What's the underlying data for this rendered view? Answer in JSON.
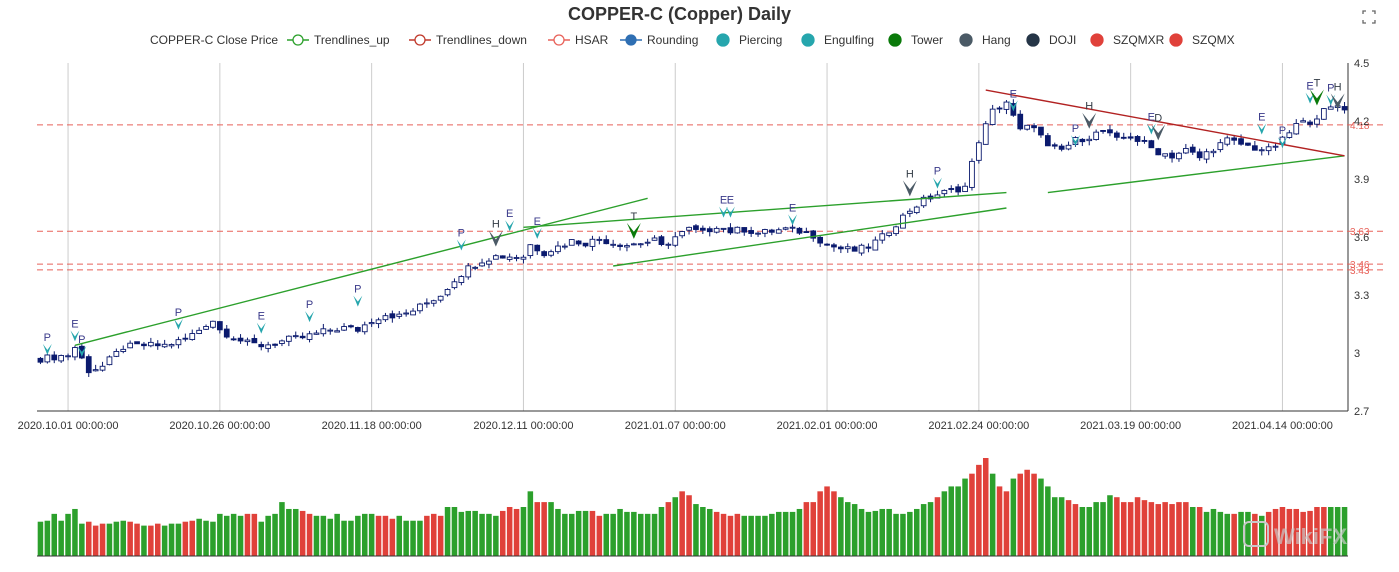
{
  "header": {
    "title": "COPPER-C (Copper) Daily",
    "save_icon": "save-as-image-icon"
  },
  "legend": [
    {
      "label": "COPPER-C Close Price",
      "kind": "none",
      "color": "#333333"
    },
    {
      "label": "Trendlines_up",
      "kind": "line-circle",
      "color": "#2ca02c"
    },
    {
      "label": "Trendlines_down",
      "kind": "line-circle",
      "color": "#c0392b"
    },
    {
      "label": "HSAR",
      "kind": "line-circle",
      "color": "#e8625a"
    },
    {
      "label": "Rounding",
      "kind": "line-dot",
      "color": "#2f6fb3"
    },
    {
      "label": "Piercing",
      "kind": "dot",
      "color": "#26a6ad"
    },
    {
      "label": "Engulfing",
      "kind": "dot",
      "color": "#26a6ad"
    },
    {
      "label": "Tower",
      "kind": "dot",
      "color": "#0a7a0a"
    },
    {
      "label": "Hang",
      "kind": "dot",
      "color": "#4b5a66"
    },
    {
      "label": "DOJI",
      "kind": "dot",
      "color": "#253547"
    },
    {
      "label": "SZQMXR",
      "kind": "dot",
      "color": "#e0413a"
    },
    {
      "label": "SZQMX",
      "kind": "dot",
      "color": "#e0413a"
    }
  ],
  "colors": {
    "candle_up": "#0b1a6e",
    "candle_down": "#0b1a6e",
    "trend_up": "#2ca02c",
    "trend_down": "#b22222",
    "hsar": "#e8625a",
    "grid": "#cccccc",
    "vol_up": "#2ca02c",
    "vol_down": "#e0413a",
    "piercing": "#26a6ad",
    "engulfing": "#26a6ad",
    "tower": "#0a7a0a",
    "hang": "#4b5a66",
    "doji": "#4b5a66",
    "watermark": "#c8c8c8"
  },
  "chart_data": {
    "type": "candlestick",
    "title": "COPPER-C (Copper) Daily",
    "y_axis": {
      "min": 2.7,
      "max": 4.5,
      "ticks": [
        2.7,
        3,
        3.3,
        3.6,
        3.9,
        4.2,
        4.5
      ],
      "tick_labels": [
        "2.7",
        "3",
        "3.3",
        "3.6",
        "3.9",
        "4.2",
        "4.5"
      ],
      "position": "right"
    },
    "x_axis": {
      "tick_labels": [
        "2020.10.01 00:00:00",
        "2020.10.26 00:00:00",
        "2020.11.18 00:00:00",
        "2020.12.11 00:00:00",
        "2021.01.07 00:00:00",
        "2021.02.01 00:00:00",
        "2021.02.24 00:00:00",
        "2021.03.19 00:00:00",
        "2021.04.14 00:00:00"
      ],
      "tick_index": [
        4,
        26,
        48,
        70,
        92,
        114,
        136,
        158,
        180
      ]
    },
    "grid": true,
    "candles_count": 190,
    "close_path": [
      [
        0,
        2.97
      ],
      [
        4,
        2.99
      ],
      [
        5,
        3.03
      ],
      [
        7,
        2.91
      ],
      [
        9,
        2.93
      ],
      [
        12,
        3.03
      ],
      [
        15,
        3.04
      ],
      [
        18,
        3.04
      ],
      [
        21,
        3.07
      ],
      [
        23,
        3.12
      ],
      [
        24,
        3.15
      ],
      [
        25,
        3.17
      ],
      [
        26,
        3.12
      ],
      [
        28,
        3.08
      ],
      [
        30,
        3.05
      ],
      [
        32,
        3.04
      ],
      [
        34,
        3.05
      ],
      [
        36,
        3.07
      ],
      [
        38,
        3.08
      ],
      [
        40,
        3.1
      ],
      [
        42,
        3.12
      ],
      [
        44,
        3.13
      ],
      [
        46,
        3.12
      ],
      [
        48,
        3.17
      ],
      [
        50,
        3.2
      ],
      [
        52,
        3.19
      ],
      [
        54,
        3.22
      ],
      [
        56,
        3.26
      ],
      [
        58,
        3.3
      ],
      [
        60,
        3.38
      ],
      [
        62,
        3.44
      ],
      [
        64,
        3.48
      ],
      [
        66,
        3.5
      ],
      [
        68,
        3.5
      ],
      [
        70,
        3.5
      ],
      [
        71,
        3.56
      ],
      [
        73,
        3.52
      ],
      [
        75,
        3.55
      ],
      [
        77,
        3.58
      ],
      [
        79,
        3.57
      ],
      [
        81,
        3.59
      ],
      [
        83,
        3.57
      ],
      [
        85,
        3.56
      ],
      [
        87,
        3.57
      ],
      [
        89,
        3.58
      ],
      [
        90,
        3.55
      ],
      [
        92,
        3.6
      ],
      [
        94,
        3.64
      ],
      [
        96,
        3.62
      ],
      [
        98,
        3.66
      ],
      [
        100,
        3.63
      ],
      [
        102,
        3.64
      ],
      [
        104,
        3.62
      ],
      [
        106,
        3.63
      ],
      [
        108,
        3.64
      ],
      [
        110,
        3.63
      ],
      [
        112,
        3.61
      ],
      [
        114,
        3.56
      ],
      [
        116,
        3.54
      ],
      [
        118,
        3.53
      ],
      [
        120,
        3.55
      ],
      [
        122,
        3.6
      ],
      [
        124,
        3.67
      ],
      [
        126,
        3.74
      ],
      [
        128,
        3.79
      ],
      [
        130,
        3.82
      ],
      [
        132,
        3.84
      ],
      [
        134,
        3.86
      ],
      [
        136,
        4.1
      ],
      [
        138,
        4.25
      ],
      [
        140,
        4.3
      ],
      [
        141,
        4.22
      ],
      [
        142,
        4.15
      ],
      [
        144,
        4.18
      ],
      [
        146,
        4.06
      ],
      [
        148,
        4.05
      ],
      [
        150,
        4.1
      ],
      [
        152,
        4.12
      ],
      [
        154,
        4.15
      ],
      [
        156,
        4.1
      ],
      [
        158,
        4.12
      ],
      [
        160,
        4.08
      ],
      [
        162,
        4.04
      ],
      [
        164,
        4.02
      ],
      [
        166,
        4.05
      ],
      [
        168,
        4.01
      ],
      [
        170,
        4.06
      ],
      [
        172,
        4.1
      ],
      [
        174,
        4.08
      ],
      [
        176,
        4.06
      ],
      [
        178,
        4.05
      ],
      [
        180,
        4.1
      ],
      [
        182,
        4.18
      ],
      [
        184,
        4.2
      ],
      [
        186,
        4.25
      ],
      [
        188,
        4.28
      ],
      [
        189,
        4.27
      ]
    ],
    "hsar_levels": [
      {
        "value": 4.18,
        "label": "4.18"
      },
      {
        "value": 3.63,
        "label": "3.63"
      },
      {
        "value": 3.46,
        "label": "3.46"
      },
      {
        "value": 3.43,
        "label": "3.43"
      }
    ],
    "trendlines_up": [
      {
        "from": [
          5,
          3.04
        ],
        "to": [
          88,
          3.8
        ]
      },
      {
        "from": [
          70,
          3.65
        ],
        "to": [
          140,
          3.83
        ]
      },
      {
        "from": [
          83,
          3.45
        ],
        "to": [
          140,
          3.75
        ]
      },
      {
        "from": [
          146,
          3.83
        ],
        "to": [
          189,
          4.02
        ]
      }
    ],
    "trendlines_down": [
      {
        "from": [
          137,
          4.36
        ],
        "to": [
          189,
          4.02
        ]
      }
    ],
    "signals": [
      {
        "i": 1,
        "letter": "P",
        "type": "piercing",
        "size": "s",
        "y": 2.99
      },
      {
        "i": 5,
        "letter": "E",
        "type": "engulfing",
        "size": "s",
        "y": 3.06
      },
      {
        "i": 6,
        "letter": "P",
        "type": "piercing",
        "size": "s",
        "y": 2.98
      },
      {
        "i": 20,
        "letter": "P",
        "type": "piercing",
        "size": "s",
        "y": 3.12
      },
      {
        "i": 32,
        "letter": "E",
        "type": "engulfing",
        "size": "s",
        "y": 3.1
      },
      {
        "i": 39,
        "letter": "P",
        "type": "piercing",
        "size": "s",
        "y": 3.16
      },
      {
        "i": 46,
        "letter": "P",
        "type": "piercing",
        "size": "s",
        "y": 3.24
      },
      {
        "i": 61,
        "letter": "P",
        "type": "piercing",
        "size": "s",
        "y": 3.53
      },
      {
        "i": 66,
        "letter": "H",
        "type": "hang",
        "size": "l",
        "y": 3.55
      },
      {
        "i": 68,
        "letter": "E",
        "type": "engulfing",
        "size": "s",
        "y": 3.63
      },
      {
        "i": 72,
        "letter": "E",
        "type": "engulfing",
        "size": "s",
        "y": 3.59
      },
      {
        "i": 86,
        "letter": "T",
        "type": "tower",
        "size": "l",
        "y": 3.59
      },
      {
        "i": 99,
        "letter": "E",
        "type": "engulfing",
        "size": "s",
        "y": 3.7
      },
      {
        "i": 100,
        "letter": "E",
        "type": "engulfing",
        "size": "s",
        "y": 3.7
      },
      {
        "i": 109,
        "letter": "E",
        "type": "engulfing",
        "size": "s",
        "y": 3.66
      },
      {
        "i": 126,
        "letter": "H",
        "type": "hang",
        "size": "l",
        "y": 3.81
      },
      {
        "i": 130,
        "letter": "P",
        "type": "piercing",
        "size": "s",
        "y": 3.85
      },
      {
        "i": 141,
        "letter": "E",
        "type": "engulfing",
        "size": "s",
        "y": 4.25
      },
      {
        "i": 150,
        "letter": "P",
        "type": "piercing",
        "size": "s",
        "y": 4.07
      },
      {
        "i": 152,
        "letter": "H",
        "type": "hang",
        "size": "l",
        "y": 4.16
      },
      {
        "i": 161,
        "letter": "E",
        "type": "engulfing",
        "size": "s",
        "y": 4.13
      },
      {
        "i": 162,
        "letter": "D",
        "type": "doji",
        "size": "l",
        "y": 4.1
      },
      {
        "i": 177,
        "letter": "E",
        "type": "engulfing",
        "size": "s",
        "y": 4.13
      },
      {
        "i": 180,
        "letter": "P",
        "type": "piercing",
        "size": "s",
        "y": 4.06
      },
      {
        "i": 184,
        "letter": "E",
        "type": "engulfing",
        "size": "s",
        "y": 4.29
      },
      {
        "i": 185,
        "letter": "T",
        "type": "tower",
        "size": "l",
        "y": 4.28
      },
      {
        "i": 187,
        "letter": "P",
        "type": "piercing",
        "size": "s",
        "y": 4.28
      },
      {
        "i": 188,
        "letter": "H",
        "type": "hang",
        "size": "l",
        "y": 4.26
      }
    ],
    "volume": {
      "present": true,
      "relative_heights": [
        0.35,
        0.36,
        0.43,
        0.36,
        0.43,
        0.48,
        0.33,
        0.35,
        0.31,
        0.33,
        0.33,
        0.35,
        0.36,
        0.35,
        0.33,
        0.31,
        0.31,
        0.33,
        0.31,
        0.33,
        0.33,
        0.35,
        0.36,
        0.38,
        0.36,
        0.35,
        0.43,
        0.41,
        0.43,
        0.41,
        0.43,
        0.43,
        0.35,
        0.41,
        0.43,
        0.55,
        0.48,
        0.48,
        0.46,
        0.43,
        0.41,
        0.41,
        0.38,
        0.43,
        0.36,
        0.36,
        0.41,
        0.43,
        0.43,
        0.41,
        0.41,
        0.38,
        0.41,
        0.36,
        0.36,
        0.36,
        0.41,
        0.43,
        0.41,
        0.5,
        0.5,
        0.45,
        0.46,
        0.46,
        0.43,
        0.43,
        0.41,
        0.46,
        0.5,
        0.48,
        0.5,
        0.66,
        0.55,
        0.55,
        0.55,
        0.48,
        0.43,
        0.43,
        0.46,
        0.46,
        0.46,
        0.41,
        0.43,
        0.43,
        0.48,
        0.45,
        0.45,
        0.43,
        0.43,
        0.43,
        0.5,
        0.55,
        0.6,
        0.66,
        0.62,
        0.53,
        0.5,
        0.48,
        0.45,
        0.43,
        0.41,
        0.43,
        0.41,
        0.41,
        0.41,
        0.41,
        0.43,
        0.45,
        0.45,
        0.45,
        0.48,
        0.55,
        0.55,
        0.66,
        0.71,
        0.66,
        0.6,
        0.55,
        0.53,
        0.48,
        0.45,
        0.46,
        0.48,
        0.48,
        0.43,
        0.43,
        0.45,
        0.48,
        0.53,
        0.55,
        0.6,
        0.66,
        0.71,
        0.71,
        0.79,
        0.84,
        0.93,
        1.0,
        0.84,
        0.71,
        0.66,
        0.79,
        0.84,
        0.88,
        0.84,
        0.79,
        0.71,
        0.6,
        0.6,
        0.57,
        0.53,
        0.5,
        0.5,
        0.55,
        0.55,
        0.62,
        0.6,
        0.55,
        0.55,
        0.6,
        0.57,
        0.55,
        0.53,
        0.55,
        0.53,
        0.55,
        0.55,
        0.5,
        0.5,
        0.45,
        0.48,
        0.45,
        0.43,
        0.43,
        0.45,
        0.45,
        0.43,
        0.41,
        0.45,
        0.48,
        0.5,
        0.48,
        0.48,
        0.45,
        0.46,
        0.5,
        0.5,
        0.5,
        0.5,
        0.5
      ],
      "red_ranges": [
        [
          7,
          9
        ],
        [
          13,
          14
        ],
        [
          16,
          17
        ],
        [
          21,
          22
        ],
        [
          30,
          31
        ],
        [
          38,
          39
        ],
        [
          49,
          51
        ],
        [
          56,
          58
        ],
        [
          67,
          69
        ],
        [
          72,
          73
        ],
        [
          80,
          81
        ],
        [
          91,
          91
        ],
        [
          93,
          94
        ],
        [
          98,
          101
        ],
        [
          111,
          115
        ],
        [
          130,
          130
        ],
        [
          135,
          137
        ],
        [
          139,
          140
        ],
        [
          142,
          144
        ],
        [
          149,
          150
        ],
        [
          156,
          166
        ],
        [
          168,
          168
        ],
        [
          173,
          173
        ],
        [
          176,
          176
        ],
        [
          178,
          186
        ]
      ]
    }
  },
  "watermark": {
    "text": "WikiFX"
  }
}
